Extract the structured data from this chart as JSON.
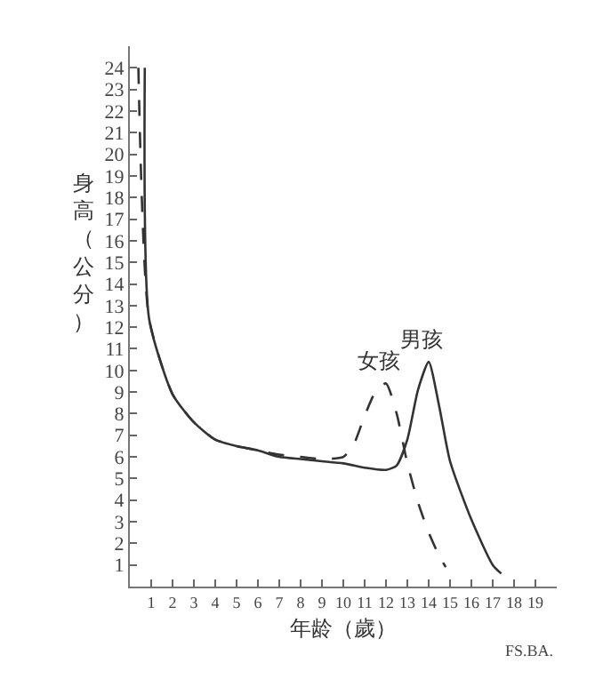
{
  "chart_data": {
    "type": "line",
    "xlabel": "年龄（歲）",
    "ylabel": "身高（公分）",
    "xlim": [
      0,
      20
    ],
    "ylim": [
      0,
      25
    ],
    "xticks": [
      1,
      2,
      3,
      4,
      5,
      6,
      7,
      8,
      9,
      10,
      11,
      12,
      13,
      14,
      15,
      16,
      17,
      18,
      19
    ],
    "yticks": [
      1,
      2,
      3,
      4,
      5,
      6,
      7,
      8,
      9,
      10,
      11,
      12,
      13,
      14,
      15,
      16,
      17,
      18,
      19,
      20,
      21,
      22,
      23,
      24
    ],
    "grid": false,
    "legend": false,
    "series": [
      {
        "name": "女孩",
        "color": "#333333",
        "line_style": "dashed",
        "x": [
          0.4,
          0.9,
          2,
          3,
          4,
          5,
          6,
          7,
          8,
          9,
          10,
          10.5,
          11,
          11.5,
          12,
          12.5,
          13,
          13.5,
          14,
          14.5,
          14.8
        ],
        "values": [
          24,
          12.4,
          8.9,
          7.6,
          6.8,
          6.5,
          6.3,
          6.1,
          6,
          5.9,
          6,
          6.6,
          7.9,
          9,
          9.4,
          8,
          5.7,
          3.9,
          2.5,
          1.4,
          0.9
        ]
      },
      {
        "name": "男孩",
        "color": "#333333",
        "line_style": "solid",
        "x": [
          0.7,
          0.9,
          2,
          3,
          4,
          5,
          6,
          7,
          8,
          9,
          10,
          11,
          12,
          12.5,
          13,
          13.5,
          14,
          14.5,
          15,
          16,
          17,
          17.4
        ],
        "values": [
          24,
          12.4,
          8.9,
          7.6,
          6.8,
          6.5,
          6.3,
          6,
          5.9,
          5.8,
          5.7,
          5.5,
          5.4,
          5.6,
          6.8,
          9.1,
          10.4,
          8.3,
          5.8,
          3.1,
          1,
          0.6
        ]
      }
    ],
    "annotations": [
      "FS.BA."
    ]
  }
}
